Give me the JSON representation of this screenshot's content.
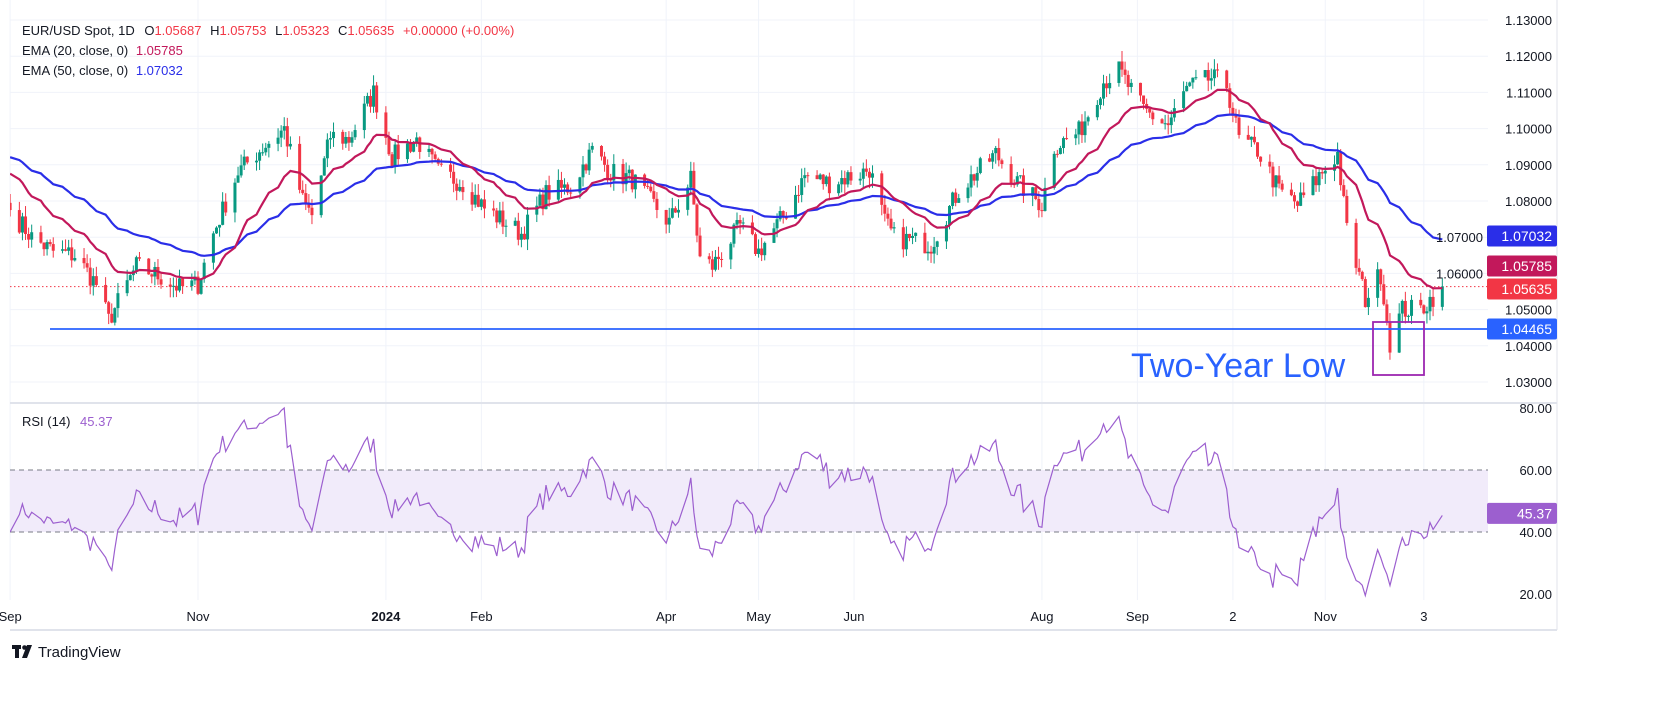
{
  "legend": {
    "symbol": "EUR/USD Spot, 1D",
    "o_label": "O",
    "o": "1.05687",
    "h_label": "H",
    "h": "1.05753",
    "l_label": "L",
    "l": "1.05323",
    "c_label": "C",
    "c": "1.05635",
    "change": "+0.00000 (+0.00%)",
    "ema20_label": "EMA (20, close, 0)",
    "ema20_value": "1.05785",
    "ema50_label": "EMA (50, close, 0)",
    "ema50_value": "1.07032",
    "rsi_label": "RSI (14)",
    "rsi_value": "45.37"
  },
  "badges": {
    "ema50": "1.07032",
    "ema20": "1.05785",
    "last": "1.05635",
    "support": "1.04465",
    "rsi": "45.37"
  },
  "annotation": "Two-Year Low",
  "branding": "TradingView",
  "colors": {
    "up": "#089981",
    "down": "#f23645",
    "ema20": "#c2185b",
    "ema50": "#2a2ee8",
    "support": "#2962ff",
    "rsi": "#9c5fcf",
    "box": "#9c27b0"
  },
  "chart_data": [
    {
      "type": "candlestick",
      "title": "EUR/USD Spot, 1D",
      "price_ticks": [
        "1.13000",
        "1.12000",
        "1.11000",
        "1.10000",
        "1.09000",
        "1.08000",
        "1.07000",
        "1.06000",
        "1.05000",
        "1.04000",
        "1.03000"
      ],
      "ylim": [
        1.025,
        1.133
      ],
      "x_ticks": [
        {
          "label": "Sep",
          "date": "2023-09-01"
        },
        {
          "label": "Nov",
          "date": "2023-11-01"
        },
        {
          "label": "2024",
          "date": "2024-01-01"
        },
        {
          "label": "Feb",
          "date": "2024-02-01"
        },
        {
          "label": "Apr",
          "date": "2024-04-01"
        },
        {
          "label": "May",
          "date": "2024-05-01"
        },
        {
          "label": "Jun",
          "date": "2024-06-01"
        },
        {
          "label": "Aug",
          "date": "2024-08-01"
        },
        {
          "label": "Sep",
          "date": "2024-09-01"
        },
        {
          "label": "2",
          "date": "2024-10-02"
        },
        {
          "label": "Nov",
          "date": "2024-11-01"
        },
        {
          "label": "3",
          "date": "2024-12-03"
        }
      ],
      "close_path": [
        [
          "2023-09-01",
          1.0775
        ],
        [
          "2023-09-08",
          1.07
        ],
        [
          "2023-09-15",
          1.066
        ],
        [
          "2023-09-22",
          1.065
        ],
        [
          "2023-09-29",
          1.057
        ],
        [
          "2023-10-03",
          1.047
        ],
        [
          "2023-10-12",
          1.062
        ],
        [
          "2023-10-20",
          1.059
        ],
        [
          "2023-10-26",
          1.056
        ],
        [
          "2023-11-01",
          1.057
        ],
        [
          "2023-11-06",
          1.071
        ],
        [
          "2023-11-14",
          1.088
        ],
        [
          "2023-11-21",
          1.094
        ],
        [
          "2023-11-29",
          1.1
        ],
        [
          "2023-12-05",
          1.08
        ],
        [
          "2023-12-08",
          1.076
        ],
        [
          "2023-12-14",
          1.098
        ],
        [
          "2023-12-20",
          1.097
        ],
        [
          "2023-12-28",
          1.11
        ],
        [
          "2024-01-03",
          1.092
        ],
        [
          "2024-01-11",
          1.097
        ],
        [
          "2024-01-18",
          1.088
        ],
        [
          "2024-01-26",
          1.085
        ],
        [
          "2024-02-02",
          1.078
        ],
        [
          "2024-02-14",
          1.071
        ],
        [
          "2024-02-22",
          1.082
        ],
        [
          "2024-03-01",
          1.084
        ],
        [
          "2024-03-08",
          1.094
        ],
        [
          "2024-03-14",
          1.088
        ],
        [
          "2024-03-21",
          1.086
        ],
        [
          "2024-03-28",
          1.079
        ],
        [
          "2024-04-02",
          1.074
        ],
        [
          "2024-04-09",
          1.086
        ],
        [
          "2024-04-12",
          1.064
        ],
        [
          "2024-04-16",
          1.062
        ],
        [
          "2024-04-25",
          1.073
        ],
        [
          "2024-05-01",
          1.066
        ],
        [
          "2024-05-10",
          1.077
        ],
        [
          "2024-05-16",
          1.087
        ],
        [
          "2024-05-24",
          1.085
        ],
        [
          "2024-06-04",
          1.088
        ],
        [
          "2024-06-06",
          1.089
        ],
        [
          "2024-06-11",
          1.074
        ],
        [
          "2024-06-14",
          1.07
        ],
        [
          "2024-06-26",
          1.068
        ],
        [
          "2024-07-05",
          1.083
        ],
        [
          "2024-07-17",
          1.093
        ],
        [
          "2024-07-24",
          1.085
        ],
        [
          "2024-08-01",
          1.079
        ],
        [
          "2024-08-05",
          1.095
        ],
        [
          "2024-08-13",
          1.099
        ],
        [
          "2024-08-21",
          1.113
        ],
        [
          "2024-08-26",
          1.116
        ],
        [
          "2024-09-03",
          1.105
        ],
        [
          "2024-09-11",
          1.101
        ],
        [
          "2024-09-17",
          1.111
        ],
        [
          "2024-09-25",
          1.114
        ],
        [
          "2024-09-30",
          1.112
        ],
        [
          "2024-10-04",
          1.097
        ],
        [
          "2024-10-10",
          1.094
        ],
        [
          "2024-10-17",
          1.083
        ],
        [
          "2024-10-23",
          1.079
        ],
        [
          "2024-10-31",
          1.088
        ],
        [
          "2024-11-05",
          1.093
        ],
        [
          "2024-11-08",
          1.072
        ],
        [
          "2024-11-14",
          1.053
        ],
        [
          "2024-11-19",
          1.06
        ],
        [
          "2024-11-22",
          1.041
        ],
        [
          "2024-11-26",
          1.05
        ],
        [
          "2024-12-02",
          1.05
        ],
        [
          "2024-12-09",
          1.0564
        ]
      ],
      "ema20_start": 1.0886,
      "ema50_start": 1.0927,
      "support_level": 1.04465,
      "last_price": 1.05635
    },
    {
      "type": "line",
      "title": "RSI (14)",
      "y_ticks": [
        "80.00",
        "60.00",
        "40.00",
        "20.00"
      ],
      "ylim": [
        20,
        80
      ],
      "band": [
        40,
        60
      ],
      "last_value": 45.37
    }
  ]
}
